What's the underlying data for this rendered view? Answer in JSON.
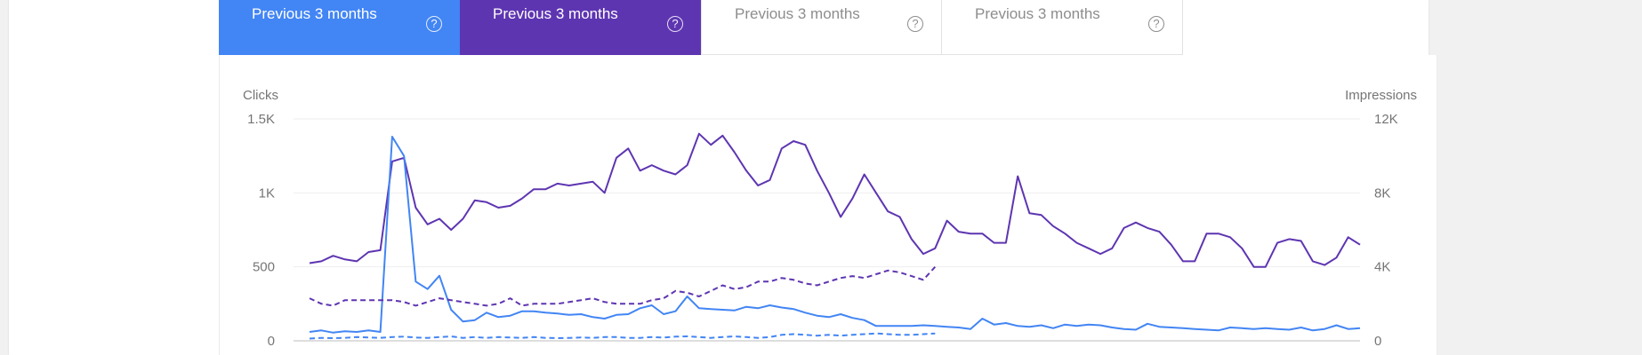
{
  "tabs": [
    {
      "label": "Previous 3 months",
      "state": "active",
      "color": "#4285f4"
    },
    {
      "label": "Previous 3 months",
      "state": "active",
      "color": "#5e35b1"
    },
    {
      "label": "Previous 3 months",
      "state": "inactive",
      "color": "#ffffff"
    },
    {
      "label": "Previous 3 months",
      "state": "inactive",
      "color": "#ffffff"
    }
  ],
  "help_glyph": "?",
  "colors": {
    "clicks": "#4285f4",
    "impressions": "#5e35b1",
    "grid": "#eeeeee"
  },
  "chart_data": {
    "type": "line",
    "title": "",
    "left_axis": {
      "label": "Clicks",
      "ticks": [
        "0",
        "500",
        "1K",
        "1.5K"
      ],
      "range": [
        0,
        1500
      ]
    },
    "right_axis": {
      "label": "Impressions",
      "ticks": [
        "0",
        "4K",
        "8K",
        "12K"
      ],
      "range": [
        0,
        12000
      ]
    },
    "grid": true,
    "x": {
      "points": 90,
      "comparison_points": 54
    },
    "series": [
      {
        "axis": "right",
        "style": "solid",
        "color": "#5e35b1",
        "values": [
          4200,
          4300,
          4600,
          4400,
          4300,
          4800,
          4900,
          9700,
          9900,
          7200,
          6300,
          6600,
          6000,
          6600,
          7600,
          7500,
          7200,
          7300,
          7700,
          8200,
          8200,
          8500,
          8400,
          8500,
          8600,
          8000,
          9900,
          10400,
          9200,
          9500,
          9200,
          9000,
          9500,
          11200,
          10600,
          11100,
          10200,
          9200,
          8400,
          8700,
          10400,
          10800,
          10600,
          9200,
          8000,
          6700,
          7700,
          9000,
          8000,
          7000,
          6700,
          5500,
          4700,
          5000,
          6500,
          5900,
          5800,
          5800,
          5300,
          5300,
          8900,
          6900,
          6800,
          6200,
          5800,
          5300,
          5000,
          4700,
          5000,
          6100,
          6400,
          6100,
          5900,
          5200,
          4300,
          4300,
          5800,
          5800,
          5600,
          5000,
          4000,
          4000,
          5300,
          5500,
          5400,
          4300,
          4100,
          4500,
          5600,
          5200
        ]
      },
      {
        "axis": "left",
        "style": "solid",
        "color": "#4285f4",
        "values": [
          60,
          70,
          55,
          65,
          60,
          70,
          60,
          1380,
          1250,
          400,
          350,
          440,
          210,
          130,
          140,
          190,
          160,
          170,
          200,
          200,
          190,
          185,
          175,
          180,
          160,
          150,
          175,
          180,
          220,
          240,
          180,
          200,
          300,
          220,
          215,
          210,
          205,
          230,
          220,
          240,
          225,
          215,
          190,
          170,
          160,
          180,
          155,
          140,
          100,
          100,
          100,
          100,
          105,
          100,
          95,
          90,
          80,
          150,
          110,
          120,
          100,
          95,
          105,
          85,
          110,
          100,
          110,
          105,
          90,
          80,
          75,
          115,
          95,
          90,
          85,
          80,
          75,
          70,
          90,
          85,
          80,
          85,
          80,
          75,
          90,
          70,
          80,
          105,
          80,
          85
        ]
      },
      {
        "axis": "right",
        "style": "dashed",
        "color": "#5e35b1",
        "values": [
          2300,
          2000,
          1900,
          2200,
          2200,
          2200,
          2200,
          2200,
          2100,
          1900,
          2100,
          2300,
          2200,
          2100,
          2000,
          1900,
          2000,
          2300,
          1900,
          2000,
          2000,
          2000,
          2100,
          2200,
          2300,
          2100,
          2000,
          2000,
          2000,
          2200,
          2300,
          2700,
          2600,
          2400,
          2700,
          3000,
          2800,
          2900,
          3200,
          3200,
          3400,
          3300,
          3100,
          3000,
          3200,
          3400,
          3500,
          3400,
          3600,
          3800,
          3700,
          3500,
          3300,
          4000
        ]
      },
      {
        "axis": "left",
        "style": "dashed",
        "color": "#4285f4",
        "values": [
          15,
          20,
          18,
          20,
          25,
          22,
          20,
          25,
          28,
          22,
          20,
          25,
          30,
          20,
          25,
          20,
          25,
          22,
          20,
          25,
          20,
          18,
          20,
          22,
          20,
          25,
          25,
          20,
          20,
          25,
          22,
          28,
          30,
          25,
          20,
          25,
          30,
          25,
          20,
          25,
          40,
          45,
          40,
          35,
          40,
          35,
          40,
          45,
          50,
          45,
          40,
          40,
          45,
          50
        ]
      }
    ]
  }
}
